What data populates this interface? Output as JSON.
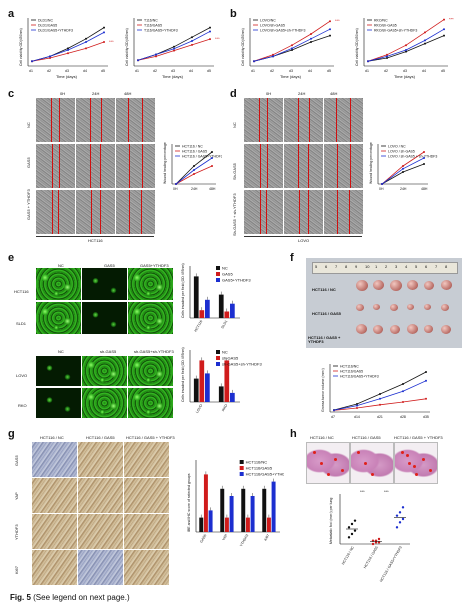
{
  "panels": {
    "a": {
      "label": "a",
      "chart1": {
        "ylabel": "Cell viability OD(450nm)",
        "xlabel": "Time (days)",
        "ticks_x": [
          "d1",
          "d2",
          "d3",
          "d4",
          "d5"
        ],
        "legend": [
          "DLD1/NC",
          "DLD1/GAS5",
          "DLD1/GAS5+YTHDF3"
        ],
        "sig": "***"
      },
      "chart2": {
        "ylabel": "Cell viability OD(450nm)",
        "xlabel": "Time (days)",
        "ticks_x": [
          "d1",
          "d2",
          "d3",
          "d4",
          "d5"
        ],
        "legend": [
          "T116/NC",
          "T116/GAS5",
          "T116/GAS5+YTHDF3"
        ],
        "sig": "***"
      }
    },
    "b": {
      "label": "b",
      "chart1": {
        "ylabel": "Cell viability OD(450nm)",
        "xlabel": "Time (days)",
        "ticks_x": [
          "d1",
          "d2",
          "d3",
          "d4",
          "d5"
        ],
        "legend": [
          "LOVO/NC",
          "LOVO/sh-GAS5",
          "LOVO/sh-GAS5+sh-YTHDF3"
        ],
        "sig": "***"
      },
      "chart2": {
        "ylabel": "Cell viability OD(450nm)",
        "xlabel": "Time (days)",
        "ticks_x": [
          "d1",
          "d2",
          "d3",
          "d4",
          "d5"
        ],
        "legend": [
          "RKO/NC",
          "RKO/sh-GAS5",
          "RKO/sh-GAS5+sh-YTHDF3"
        ],
        "sig": "***"
      }
    },
    "c": {
      "label": "c",
      "times": [
        "0H",
        "24H",
        "48H"
      ],
      "rows": [
        "NC",
        "GAS5",
        "GAS5 + YTHDF3"
      ],
      "cell_line": "HCT116",
      "chart": {
        "ylabel": "Wound healing percentage",
        "ticks_x": [
          "0H",
          "24H",
          "48H"
        ],
        "legend": [
          "HCT116 / NC",
          "HCT116 / GAS5",
          "HCT116 / GAS5+YTHDF3"
        ]
      }
    },
    "d": {
      "label": "d",
      "times": [
        "0H",
        "24H",
        "48H"
      ],
      "rows": [
        "NC",
        "Sh-GAS5",
        "Sh-GAS5 + sh-YTHDF3"
      ],
      "cell_line": "LOVO",
      "chart": {
        "ylabel": "Wound healing percentage",
        "ticks_x": [
          "0H",
          "24H",
          "48H"
        ],
        "legend": [
          "LOVO / NC",
          "LOVO / sh-GAS5",
          "LOVO / sh-GAS5 + sh-YTHDF3"
        ]
      }
    },
    "e": {
      "label": "e",
      "top_cols": [
        "NC",
        "GAS5",
        "GAS5+YTHDF3"
      ],
      "top_rows": [
        "HCT116",
        "SLD1"
      ],
      "bottom_cols": [
        "NC",
        "sh-GAS5",
        "sh-GAS5+sh-YTHDF3"
      ],
      "bottom_rows": [
        "LOVO",
        "RKO"
      ],
      "chart1": {
        "ylabel": "Cells invaded per field (OD 495nm)",
        "legend": [
          "NC",
          "GAS5",
          "GAS5+YTHDF3"
        ],
        "groups": [
          "HCT116",
          "DLD1"
        ]
      },
      "chart2": {
        "ylabel": "Cells invaded per field (OD 495nm)",
        "legend": [
          "NC",
          "sh-GAS5",
          "sh-GAS5+sh-YTHDF3"
        ],
        "groups": [
          "LOVO",
          "RKO"
        ]
      }
    },
    "f": {
      "label": "f",
      "ruler": [
        "5",
        "6",
        "7",
        "8",
        "9",
        "10",
        "1",
        "2",
        "3",
        "4",
        "5",
        "6",
        "7",
        "8"
      ],
      "rows": [
        "HCT116 / NC",
        "HCT116 / GAS5",
        "HCT116 / GAS5 + YTHDF3"
      ],
      "chart": {
        "ylabel": "Grossa tumor volume (mm³)",
        "legend": [
          "HCT116/NC",
          "HCT116/GAS5",
          "HCT116/GAS5+YTHDF3"
        ],
        "ticks_x": [
          "d7",
          "d14",
          "d21",
          "d28",
          "d35"
        ]
      }
    },
    "g": {
      "label": "g",
      "cols": [
        "HCT116 / NC",
        "HCT116 / GAS5",
        "HCT116 / GAS5 + YTHDF3"
      ],
      "rows": [
        "GAS5",
        "YAP",
        "YTHDF3",
        "Ki67"
      ],
      "chart": {
        "ylabel": "IBE and IHC score of selected groups",
        "legend": [
          "HCT116/NC",
          "HCT116/GAS5",
          "HCT116/GAS5+YTHDF3"
        ],
        "groups": [
          "GAS5",
          "YAP",
          "YTHDF3",
          "Ki67"
        ]
      }
    },
    "h": {
      "label": "h",
      "cols": [
        "HCT116 / NC",
        "HCT116 / GAS5",
        "HCT116 / GAS5 + YTHDF3"
      ],
      "chart": {
        "ylabel": "Metastatic foci (mm²) per lung",
        "groups": [
          "HCT116 / NC",
          "HCT116 / GAS5",
          "HCT116 / GAS5+YTHDF3"
        ],
        "sig": "***"
      }
    }
  },
  "caption": {
    "figure": "Fig. 5",
    "text": "(See legend on next page.)"
  },
  "chart_data": [
    {
      "type": "line",
      "panel": "a-1",
      "x": [
        "d1",
        "d2",
        "d3",
        "d4",
        "d5"
      ],
      "series": [
        {
          "name": "DLD1/NC",
          "values": [
            0.3,
            0.6,
            1.1,
            1.7,
            2.4
          ]
        },
        {
          "name": "DLD1/GAS5",
          "values": [
            0.3,
            0.5,
            0.8,
            1.1,
            1.5
          ]
        },
        {
          "name": "DLD1/GAS5+YTHDF3",
          "values": [
            0.3,
            0.6,
            1.0,
            1.5,
            2.1
          ]
        }
      ],
      "ylim": [
        0,
        3
      ]
    },
    {
      "type": "line",
      "panel": "a-2",
      "x": [
        "d1",
        "d2",
        "d3",
        "d4",
        "d5"
      ],
      "series": [
        {
          "name": "T116/NC",
          "values": [
            0.3,
            0.6,
            1.0,
            1.5,
            2.0
          ]
        },
        {
          "name": "T116/GAS5",
          "values": [
            0.3,
            0.5,
            0.8,
            1.1,
            1.4
          ]
        },
        {
          "name": "T116/GAS5+YTHDF3",
          "values": [
            0.3,
            0.6,
            0.9,
            1.3,
            1.8
          ]
        }
      ],
      "ylim": [
        0,
        2.5
      ]
    },
    {
      "type": "line",
      "panel": "b-1",
      "x": [
        "d1",
        "d2",
        "d3",
        "d4",
        "d5"
      ],
      "series": [
        {
          "name": "LOVO/NC",
          "values": [
            0.3,
            0.6,
            1.0,
            1.5,
            1.9
          ]
        },
        {
          "name": "LOVO/sh-GAS5",
          "values": [
            0.3,
            0.7,
            1.3,
            2.0,
            2.8
          ]
        },
        {
          "name": "LOVO/sh-GAS5+sh-YTHDF3",
          "values": [
            0.3,
            0.6,
            1.1,
            1.7,
            2.3
          ]
        }
      ],
      "ylim": [
        0,
        3
      ]
    },
    {
      "type": "line",
      "panel": "b-2",
      "x": [
        "d1",
        "d2",
        "d3",
        "d4",
        "d5"
      ],
      "series": [
        {
          "name": "RKO/NC",
          "values": [
            0.3,
            0.5,
            0.9,
            1.4,
            1.9
          ]
        },
        {
          "name": "RKO/sh-GAS5",
          "values": [
            0.3,
            0.7,
            1.3,
            2.1,
            2.9
          ]
        },
        {
          "name": "RKO/sh-GAS5+sh-YTHDF3",
          "values": [
            0.3,
            0.6,
            1.0,
            1.6,
            2.3
          ]
        }
      ],
      "ylim": [
        0,
        3
      ]
    },
    {
      "type": "line",
      "panel": "c",
      "x": [
        "0H",
        "24H",
        "48H"
      ],
      "series": [
        {
          "name": "HCT116 / NC",
          "values": [
            0,
            45,
            80
          ]
        },
        {
          "name": "HCT116 / GAS5",
          "values": [
            0,
            25,
            45
          ]
        },
        {
          "name": "HCT116 / GAS5+YTHDF3",
          "values": [
            0,
            35,
            65
          ]
        }
      ],
      "ylim": [
        0,
        100
      ]
    },
    {
      "type": "line",
      "panel": "d",
      "x": [
        "0H",
        "24H",
        "48H"
      ],
      "series": [
        {
          "name": "LOVO / NC",
          "values": [
            0,
            30,
            50
          ]
        },
        {
          "name": "LOVO / sh-GAS5",
          "values": [
            0,
            45,
            80
          ]
        },
        {
          "name": "LOVO / sh-GAS5 + sh-YTHDF3",
          "values": [
            0,
            38,
            65
          ]
        }
      ],
      "ylim": [
        0,
        100
      ]
    },
    {
      "type": "bar",
      "panel": "e-1",
      "categories": [
        "HCT116",
        "DLD1"
      ],
      "series": [
        {
          "name": "NC",
          "values": [
            1.6,
            0.9
          ]
        },
        {
          "name": "GAS5",
          "values": [
            0.3,
            0.25
          ]
        },
        {
          "name": "GAS5+YTHDF3",
          "values": [
            0.7,
            0.55
          ]
        }
      ],
      "ylim": [
        0,
        2
      ]
    },
    {
      "type": "bar",
      "panel": "e-2",
      "categories": [
        "LOVO",
        "RKO"
      ],
      "series": [
        {
          "name": "NC",
          "values": [
            0.9,
            0.6
          ]
        },
        {
          "name": "sh-GAS5",
          "values": [
            1.6,
            1.6
          ]
        },
        {
          "name": "sh-GAS5+sh-YTHDF3",
          "values": [
            1.1,
            0.35
          ]
        }
      ],
      "ylim": [
        0,
        2
      ]
    },
    {
      "type": "line",
      "panel": "f",
      "x": [
        "d7",
        "d14",
        "d21",
        "d28",
        "d35"
      ],
      "series": [
        {
          "name": "HCT116/NC",
          "values": [
            50,
            200,
            450,
            700,
            1000
          ]
        },
        {
          "name": "HCT116/GAS5",
          "values": [
            40,
            100,
            180,
            250,
            330
          ]
        },
        {
          "name": "HCT116/GAS5+YTHDF3",
          "values": [
            45,
            160,
            330,
            520,
            780
          ]
        }
      ],
      "ylim": [
        0,
        1200
      ]
    },
    {
      "type": "bar",
      "panel": "g",
      "categories": [
        "GAS5",
        "YAP",
        "YTHDF3",
        "Ki67"
      ],
      "series": [
        {
          "name": "HCT116/NC",
          "values": [
            2,
            6,
            6,
            6
          ]
        },
        {
          "name": "HCT116/GAS5",
          "values": [
            8,
            2,
            2,
            2
          ]
        },
        {
          "name": "HCT116/GAS5+YTHDF3",
          "values": [
            3,
            5,
            5,
            7
          ]
        }
      ],
      "ylim": [
        0,
        10
      ]
    },
    {
      "type": "scatter",
      "panel": "h",
      "categories": [
        "HCT116 / NC",
        "HCT116 / GAS5",
        "HCT116 / GAS5+YTHDF3"
      ],
      "series": [
        {
          "name": "HCT116 / NC",
          "values": [
            4,
            6,
            8,
            10,
            12,
            14
          ]
        },
        {
          "name": "HCT116 / GAS5",
          "values": [
            0,
            1,
            1,
            2,
            2,
            3
          ]
        },
        {
          "name": "HCT116 / GAS5+YTHDF3",
          "values": [
            10,
            13,
            15,
            17,
            19,
            22
          ]
        }
      ],
      "ylim": [
        0,
        30
      ]
    }
  ]
}
